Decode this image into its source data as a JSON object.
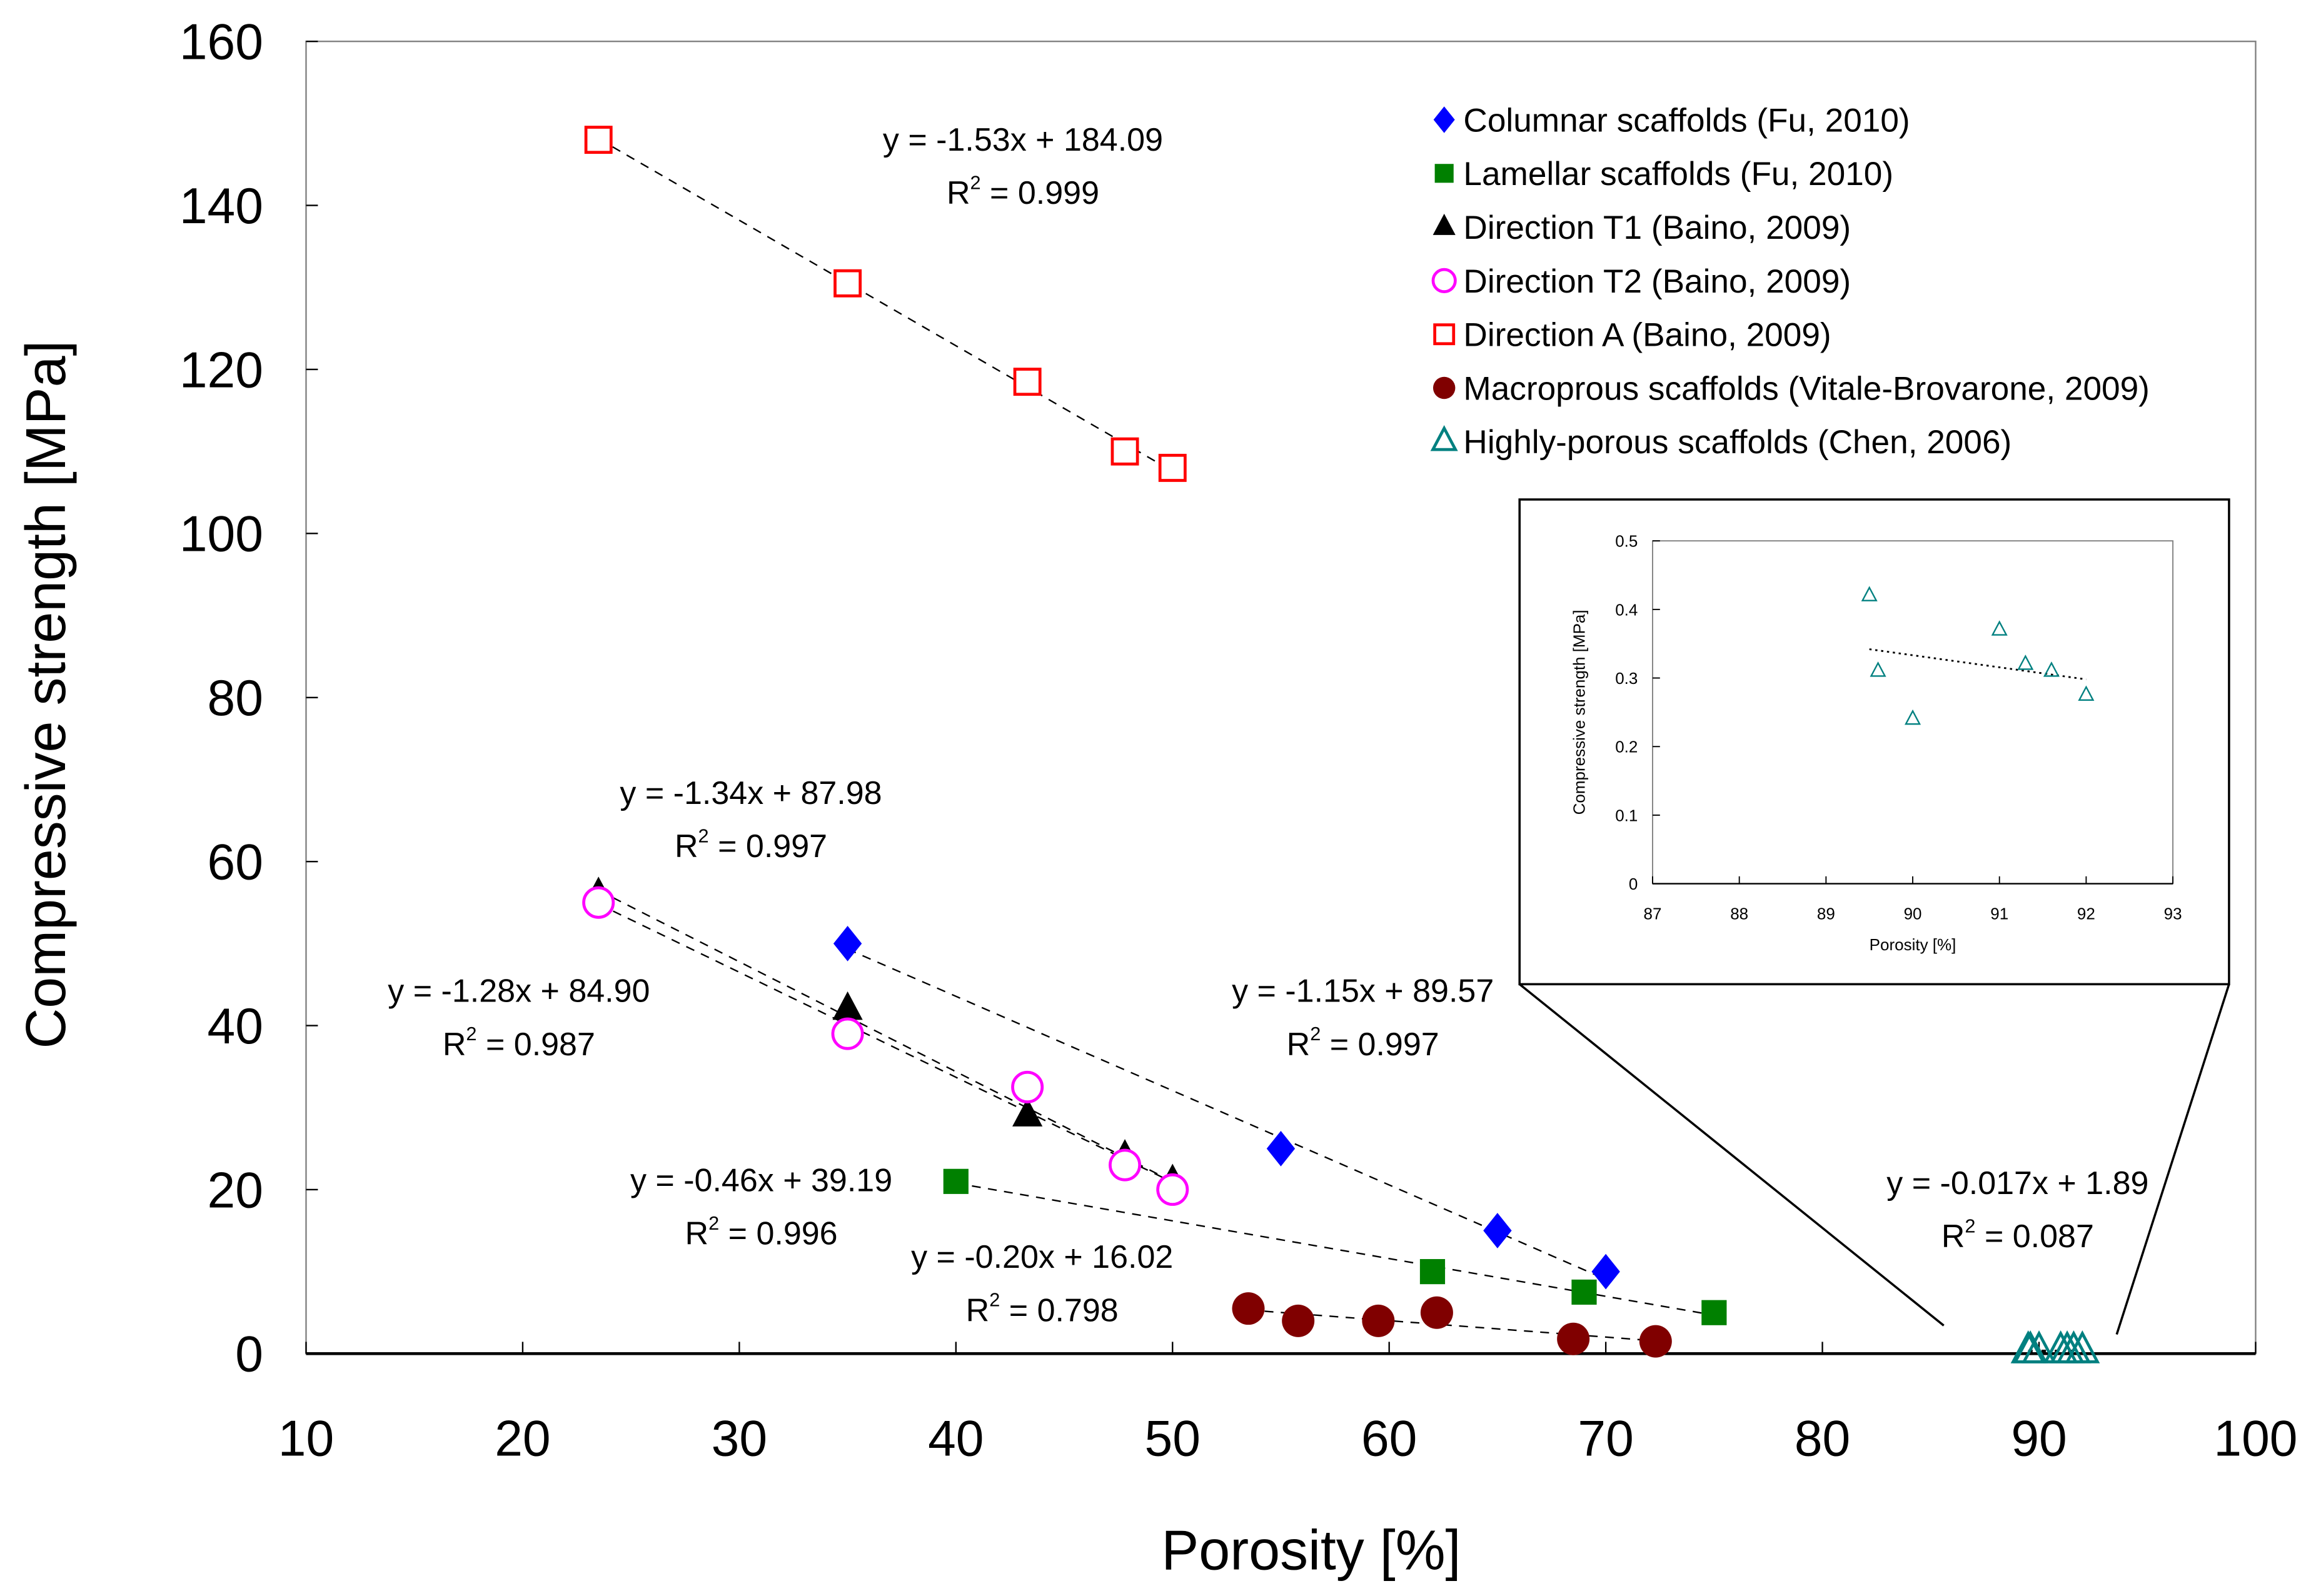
{
  "chart_data": {
    "type": "scatter",
    "xlabel": "Porosity [%]",
    "ylabel": "Compressive strength [MPa]",
    "xlim": [
      10,
      100
    ],
    "ylim": [
      0,
      160
    ],
    "xticks": [
      10,
      20,
      30,
      40,
      50,
      60,
      70,
      80,
      90,
      100
    ],
    "yticks": [
      0,
      20,
      40,
      60,
      80,
      100,
      120,
      140,
      160
    ],
    "grid": false,
    "legend_position": "top-right",
    "series": [
      {
        "name": "Columnar scaffolds (Fu, 2010)",
        "marker": "diamond",
        "color": "#0000FF",
        "x": [
          35,
          55,
          65,
          70
        ],
        "y": [
          50,
          25,
          15,
          10
        ],
        "trend": {
          "slope": -1.15,
          "intercept": 89.57,
          "equation": "y = -1.15x + 89.57",
          "r2_label": "R",
          "r2_value": " = 0.997"
        }
      },
      {
        "name": "Lamellar scaffolds (Fu, 2010)",
        "marker": "square",
        "color": "#008000",
        "x": [
          40,
          62,
          69,
          75
        ],
        "y": [
          21,
          10,
          7.5,
          5
        ],
        "trend": {
          "slope": -0.46,
          "intercept": 39.19,
          "equation": "y = -0.46x + 39.19",
          "r2_label": "R",
          "r2_value": " = 0.996"
        }
      },
      {
        "name": "Direction T1 (Baino, 2009)",
        "marker": "triangle",
        "color": "#000000",
        "x": [
          23.5,
          35,
          43.3,
          47.8,
          50
        ],
        "y": [
          56,
          42,
          29,
          24,
          21
        ],
        "trend": {
          "slope": -1.34,
          "intercept": 87.98,
          "equation": "y = -1.34x + 87.98",
          "r2_label": "R",
          "r2_value": " = 0.997"
        }
      },
      {
        "name": "Direction T2 (Baino, 2009)",
        "marker": "open-circle",
        "color": "#FF00FF",
        "x": [
          23.5,
          35,
          43.3,
          47.8,
          50
        ],
        "y": [
          55,
          39,
          32.5,
          23,
          20
        ],
        "trend": {
          "slope": -1.28,
          "intercept": 84.9,
          "equation": "y = -1.28x + 84.90",
          "r2_label": "R",
          "r2_value": " = 0.987"
        }
      },
      {
        "name": "Direction A (Baino, 2009)",
        "marker": "open-square",
        "color": "#FF0000",
        "x": [
          23.5,
          35,
          43.3,
          47.8,
          50
        ],
        "y": [
          148,
          130.5,
          118.5,
          110,
          108
        ],
        "trend": {
          "slope": -1.53,
          "intercept": 184.09,
          "equation": "y = -1.53x + 184.09",
          "r2_label": "R",
          "r2_value": " = 0.999"
        }
      },
      {
        "name": "Macroprous scaffolds (Vitale-Brovarone, 2009)",
        "marker": "circle",
        "color": "#800000",
        "x": [
          53.5,
          55.8,
          59.5,
          62.2,
          68.5,
          72.3
        ],
        "y": [
          5.5,
          4,
          4,
          5,
          1.8,
          1.5
        ],
        "trend": {
          "slope": -0.2,
          "intercept": 16.02,
          "equation": "y = -0.20x + 16.02",
          "r2_label": "R",
          "r2_value": " = 0.798"
        }
      },
      {
        "name": "Highly-porous scaffolds (Chen, 2006)",
        "marker": "open-triangle",
        "color": "#008080",
        "x": [
          89.5,
          89.6,
          90,
          91,
          91.3,
          91.6,
          92
        ],
        "y": [
          0.42,
          0.31,
          0.24,
          0.37,
          0.32,
          0.31,
          0.275
        ],
        "trend": {
          "slope": -0.017,
          "intercept": 1.89,
          "equation": "y = -0.017x + 1.89",
          "r2_label": "R",
          "r2_value": " = 0.087"
        }
      }
    ],
    "inset": {
      "xlabel": "Porosity [%]",
      "ylabel": "Compressive strength [MPa]",
      "xlim": [
        87,
        93
      ],
      "ylim": [
        0,
        0.5
      ],
      "xticks": [
        87,
        88,
        89,
        90,
        91,
        92,
        93
      ],
      "yticks": [
        0,
        0.1,
        0.2,
        0.3,
        0.4,
        0.5
      ],
      "ytick_labels": [
        "0",
        "0.1",
        "0.2",
        "0.3",
        "0.4",
        "0.5"
      ]
    }
  }
}
